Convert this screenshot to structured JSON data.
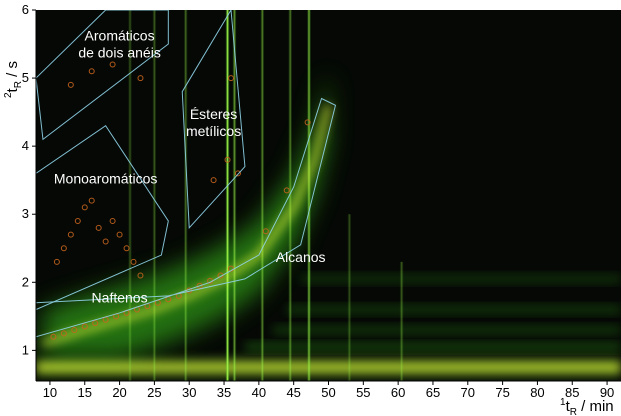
{
  "chart_data": {
    "type": "heatmap",
    "xlabel": {
      "sup": "1",
      "main": "t",
      "sub": "R",
      "rest": " / min"
    },
    "ylabel": {
      "sup": "2",
      "main": "t",
      "sub": "R",
      "rest": " / s"
    },
    "xlim": [
      8,
      92
    ],
    "ylim": [
      0.55,
      6.0
    ],
    "xticks": [
      10,
      15,
      20,
      25,
      30,
      35,
      40,
      45,
      50,
      55,
      60,
      65,
      70,
      75,
      80,
      85,
      90
    ],
    "xtick_labels": [
      "10",
      "15",
      "20",
      "25",
      "30",
      "35",
      "40",
      "45",
      "50",
      "55",
      "60",
      "65",
      "70",
      "75",
      "80",
      "85",
      "90"
    ],
    "yticks": [
      1,
      2,
      3,
      4,
      5,
      6
    ],
    "ytick_labels": [
      "1",
      "2",
      "3",
      "4",
      "5",
      "6"
    ],
    "colors": {
      "background": "#050805",
      "signal": "#3cc81e",
      "hot": "#f5ff3c",
      "region": "#8fd3e8",
      "peak_marker": "#c8641e"
    },
    "bands": [
      {
        "y": 0.75,
        "x_start": 8,
        "x_end": 92,
        "intensity": 1.0
      },
      {
        "y": 1.05,
        "x_start": 38,
        "x_end": 92,
        "intensity": 0.45
      },
      {
        "y": 1.3,
        "x_start": 42,
        "x_end": 92,
        "intensity": 0.35
      },
      {
        "y": 1.6,
        "x_start": 44,
        "x_end": 92,
        "intensity": 0.35
      },
      {
        "y": 2.05,
        "x_start": 46,
        "x_end": 92,
        "intensity": 0.3
      }
    ],
    "main_curve": [
      [
        9,
        1.1
      ],
      [
        15,
        1.3
      ],
      [
        20,
        1.45
      ],
      [
        25,
        1.6
      ],
      [
        30,
        1.8
      ],
      [
        35,
        2.05
      ],
      [
        40,
        2.4
      ],
      [
        45,
        3.1
      ],
      [
        48,
        3.8
      ],
      [
        50,
        4.6
      ]
    ],
    "regions": [
      {
        "label": [
          "Aromáticos",
          "de dois anéis"
        ],
        "label_pos": [
          20,
          5.55
        ],
        "polygon": [
          [
            8,
            5.0
          ],
          [
            18,
            6.0
          ],
          [
            27,
            6.0
          ],
          [
            27,
            5.5
          ],
          [
            9,
            4.1
          ]
        ]
      },
      {
        "label": [
          "Ésteres",
          "metílicos"
        ],
        "label_pos": [
          33.5,
          4.4
        ],
        "polygon": [
          [
            29,
            4.8
          ],
          [
            36,
            6.0
          ],
          [
            38,
            3.7
          ],
          [
            30,
            2.8
          ]
        ]
      },
      {
        "label": [
          "Monoaromáticos"
        ],
        "label_pos": [
          18,
          3.45
        ],
        "polygon": [
          [
            8,
            3.6
          ],
          [
            18,
            4.3
          ],
          [
            27,
            2.9
          ],
          [
            26,
            2.4
          ],
          [
            8,
            1.6
          ]
        ]
      },
      {
        "label": [
          "Naftenos"
        ],
        "label_pos": [
          20,
          1.7
        ],
        "polygon": [
          [
            8,
            1.7
          ],
          [
            27,
            1.8
          ],
          [
            38,
            2.05
          ],
          [
            46,
            2.55
          ],
          [
            51,
            4.6
          ],
          [
            49,
            4.7
          ],
          [
            45,
            3.4
          ],
          [
            40,
            2.4
          ],
          [
            33,
            2.0
          ],
          [
            20,
            1.55
          ],
          [
            8,
            1.2
          ]
        ]
      },
      {
        "label": [
          "Alcanos"
        ],
        "label_pos": [
          46,
          2.3
        ],
        "polygon": []
      }
    ],
    "peak_markers": [
      [
        10.5,
        1.2
      ],
      [
        12,
        1.25
      ],
      [
        13.5,
        1.3
      ],
      [
        15,
        1.35
      ],
      [
        16.5,
        1.4
      ],
      [
        18,
        1.45
      ],
      [
        19.5,
        1.5
      ],
      [
        21,
        1.55
      ],
      [
        22.5,
        1.6
      ],
      [
        24,
        1.65
      ],
      [
        25.5,
        1.7
      ],
      [
        27,
        1.75
      ],
      [
        28.5,
        1.8
      ],
      [
        30,
        1.88
      ],
      [
        31.5,
        1.95
      ],
      [
        33,
        2.02
      ],
      [
        34.5,
        2.1
      ],
      [
        36,
        2.2
      ],
      [
        41,
        2.75
      ],
      [
        44,
        3.35
      ],
      [
        47,
        4.35
      ],
      [
        11,
        2.3
      ],
      [
        12,
        2.5
      ],
      [
        13,
        2.7
      ],
      [
        14,
        2.9
      ],
      [
        15,
        3.1
      ],
      [
        16,
        3.2
      ],
      [
        17,
        2.8
      ],
      [
        18,
        2.6
      ],
      [
        19,
        2.9
      ],
      [
        20,
        2.7
      ],
      [
        21,
        2.5
      ],
      [
        22,
        2.3
      ],
      [
        23,
        2.1
      ],
      [
        13,
        4.9
      ],
      [
        16,
        5.1
      ],
      [
        19,
        5.2
      ],
      [
        23,
        5.0
      ],
      [
        33.5,
        3.5
      ],
      [
        35.5,
        3.8
      ],
      [
        36,
        5.0
      ],
      [
        37,
        3.6
      ]
    ],
    "vertical_streaks": [
      {
        "x": 35.5,
        "intensity": 1.0,
        "y_max": 6.0
      },
      {
        "x": 36.5,
        "intensity": 0.6,
        "y_max": 6.0
      },
      {
        "x": 40.5,
        "intensity": 0.5,
        "y_max": 6.0
      },
      {
        "x": 44.5,
        "intensity": 0.45,
        "y_max": 6.0
      },
      {
        "x": 47.2,
        "intensity": 0.7,
        "y_max": 6.0
      },
      {
        "x": 53,
        "intensity": 0.3,
        "y_max": 3.0
      },
      {
        "x": 60.5,
        "intensity": 0.35,
        "y_max": 2.3
      },
      {
        "x": 29.5,
        "intensity": 0.4,
        "y_max": 6.0
      },
      {
        "x": 25,
        "intensity": 0.35,
        "y_max": 6.0
      },
      {
        "x": 21.5,
        "intensity": 0.3,
        "y_max": 6.0
      }
    ]
  }
}
